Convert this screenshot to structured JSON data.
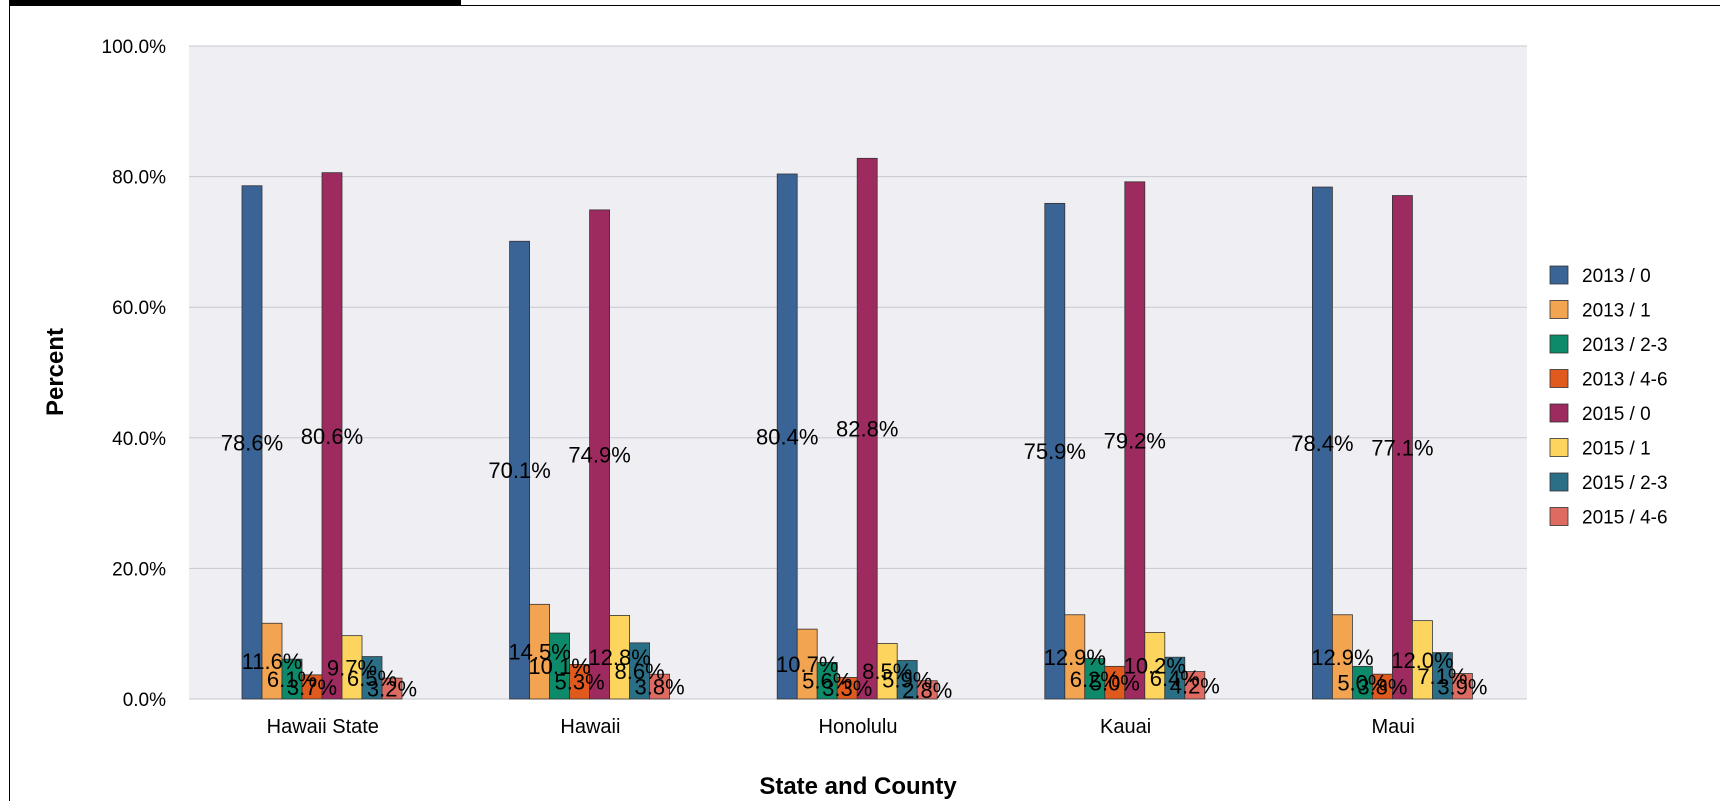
{
  "chart_data": {
    "type": "bar",
    "xlabel": "State and County",
    "ylabel": "Percent",
    "ylim": [
      0,
      100
    ],
    "yticks": [
      "0.0%",
      "20.0%",
      "40.0%",
      "60.0%",
      "80.0%",
      "100.0%"
    ],
    "grid": true,
    "legend_position": "right",
    "categories": [
      "Hawaii State",
      "Hawaii",
      "Honolulu",
      "Kauai",
      "Maui"
    ],
    "series": [
      {
        "name": "2013 / 0",
        "color": "#3a6496",
        "values": [
          78.6,
          70.1,
          80.4,
          75.9,
          78.4
        ],
        "labels": [
          "78.6%",
          "70.1%",
          "80.4%",
          "75.9%",
          "78.4%"
        ]
      },
      {
        "name": "2013 / 1",
        "color": "#f2a451",
        "values": [
          11.6,
          14.5,
          10.7,
          12.9,
          12.9
        ],
        "labels": [
          "11.6%",
          "14.5%",
          "10.7%",
          "12.9%",
          "12.9%"
        ]
      },
      {
        "name": "2013 / 2-3",
        "color": "#0d8a6a",
        "values": [
          6.1,
          10.1,
          5.6,
          6.2,
          5.0
        ],
        "labels": [
          "6.1%",
          "10.1%",
          "5.6%",
          "6.2%",
          "5.0%"
        ]
      },
      {
        "name": "2013 / 4-6",
        "color": "#e05a1e",
        "values": [
          3.7,
          5.3,
          3.3,
          5.0,
          3.8
        ],
        "labels": [
          "3.7%",
          "5.3%",
          "3.3%",
          "5.0%",
          "3.8%"
        ]
      },
      {
        "name": "2015 / 0",
        "color": "#9e2b5f",
        "values": [
          80.6,
          74.9,
          82.8,
          79.2,
          77.1
        ],
        "labels": [
          "80.6%",
          "74.9%",
          "82.8%",
          "79.2%",
          "77.1%"
        ]
      },
      {
        "name": "2015 / 1",
        "color": "#fdd45d",
        "values": [
          9.7,
          12.8,
          8.5,
          10.2,
          12.0
        ],
        "labels": [
          "9.7%",
          "12.8%",
          "8.5%",
          "10.2%",
          "12.0%"
        ]
      },
      {
        "name": "2015 / 2-3",
        "color": "#2b6f86",
        "values": [
          6.5,
          8.6,
          5.9,
          6.4,
          7.1
        ],
        "labels": [
          "6.5%",
          "8.6%",
          "5.9%",
          "6.4%",
          "7.1%"
        ]
      },
      {
        "name": "2015 / 4-6",
        "color": "#dd6b62",
        "values": [
          3.2,
          3.8,
          2.8,
          4.2,
          3.9
        ],
        "labels": [
          "3.2%",
          "3.8%",
          "2.8%",
          "4.2%",
          "3.9%"
        ]
      }
    ]
  }
}
